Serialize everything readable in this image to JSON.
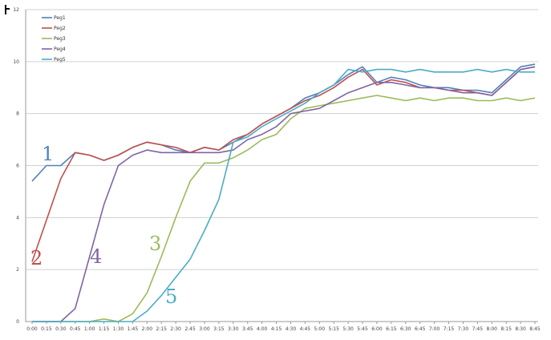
{
  "chart_data": {
    "type": "line",
    "x": [
      "0:00",
      "0:15",
      "0:30",
      "0:45",
      "1:00",
      "1:15",
      "1:30",
      "1:45",
      "2:00",
      "2:15",
      "2:30",
      "2:45",
      "3:00",
      "3:15",
      "3:30",
      "3:45",
      "4:00",
      "4:15",
      "4:30",
      "4:45",
      "5:00",
      "5:15",
      "5:30",
      "5:45",
      "6:00",
      "6:15",
      "6:30",
      "6:45",
      "7:00",
      "7:15",
      "7:30",
      "7:45",
      "8:00",
      "8:15",
      "8:30",
      "8:45"
    ],
    "ylim": [
      0,
      12
    ],
    "yticks": [
      0,
      2,
      4,
      6,
      8,
      10,
      12
    ],
    "grid": "horizontal",
    "legend_position": "top-left",
    "series": [
      {
        "name": "Peg1",
        "color": "#4F81BD",
        "label": "1",
        "values": [
          5.4,
          6.0,
          6.0,
          6.5,
          6.4,
          6.2,
          6.4,
          6.7,
          6.9,
          6.8,
          6.6,
          6.5,
          6.7,
          6.6,
          6.9,
          7.2,
          7.6,
          7.9,
          8.2,
          8.6,
          8.8,
          9.1,
          9.5,
          9.8,
          9.2,
          9.4,
          9.3,
          9.1,
          9.0,
          9.0,
          8.9,
          8.9,
          8.8,
          9.3,
          9.8,
          9.9
        ]
      },
      {
        "name": "Peg2",
        "color": "#C0504D",
        "label": "2",
        "values": [
          2.3,
          3.9,
          5.5,
          6.5,
          6.4,
          6.2,
          6.4,
          6.7,
          6.9,
          6.8,
          6.7,
          6.5,
          6.7,
          6.6,
          7.0,
          7.2,
          7.6,
          7.9,
          8.2,
          8.5,
          8.7,
          9.0,
          9.4,
          9.7,
          9.1,
          9.3,
          9.2,
          9.0,
          9.0,
          8.9,
          8.9,
          8.8,
          8.7,
          9.2,
          9.7,
          9.8
        ]
      },
      {
        "name": "Peg3",
        "color": "#9BBB59",
        "label": "3",
        "values": [
          0,
          0,
          0,
          0,
          0,
          0.1,
          0,
          0.3,
          1.1,
          2.5,
          4.0,
          5.4,
          6.1,
          6.1,
          6.3,
          6.6,
          7.0,
          7.2,
          7.8,
          8.2,
          8.3,
          8.4,
          8.5,
          8.6,
          8.7,
          8.6,
          8.5,
          8.6,
          8.5,
          8.6,
          8.6,
          8.5,
          8.5,
          8.6,
          8.5,
          8.6
        ]
      },
      {
        "name": "Peg4",
        "color": "#8064A2",
        "label": "4",
        "values": [
          0,
          0,
          0,
          0.5,
          2.5,
          4.5,
          6.0,
          6.4,
          6.6,
          6.5,
          6.5,
          6.5,
          6.5,
          6.5,
          6.6,
          7.0,
          7.2,
          7.5,
          8.0,
          8.1,
          8.2,
          8.5,
          8.8,
          9.0,
          9.2,
          9.2,
          9.1,
          9.0,
          9.0,
          8.9,
          8.8,
          8.8,
          8.7,
          9.2,
          9.7,
          9.8
        ]
      },
      {
        "name": "Peg5",
        "color": "#4BACC6",
        "label": "5",
        "values": [
          0,
          0,
          0,
          0,
          0,
          0,
          0,
          0,
          0.4,
          1.0,
          1.7,
          2.4,
          3.5,
          4.7,
          6.9,
          7.1,
          7.5,
          7.8,
          8.1,
          8.4,
          8.8,
          9.1,
          9.7,
          9.6,
          9.7,
          9.7,
          9.6,
          9.7,
          9.6,
          9.6,
          9.6,
          9.7,
          9.6,
          9.7,
          9.6,
          9.6
        ]
      }
    ]
  }
}
